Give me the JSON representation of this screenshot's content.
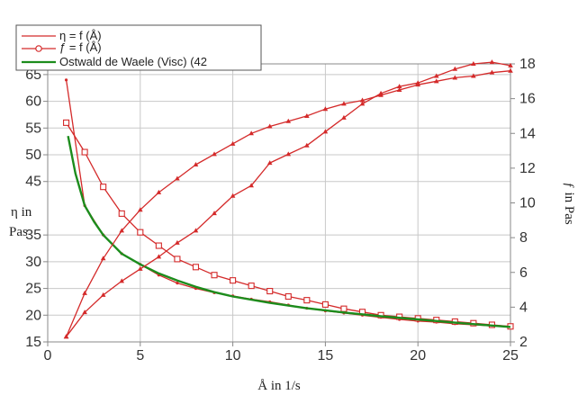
{
  "chart_data": {
    "type": "line",
    "xlabel": "Å in 1/s",
    "ylabel_left": [
      "η in",
      "Pas"
    ],
    "ylabel_right": "ƒ in Pas",
    "xlim": [
      0,
      25
    ],
    "ylim_left": [
      15,
      67
    ],
    "ylim_right": [
      2,
      18
    ],
    "xticks": [
      0,
      5,
      10,
      15,
      20,
      25
    ],
    "yticks_left": [
      15,
      20,
      25,
      30,
      35,
      45,
      50,
      55,
      60,
      65
    ],
    "yticks_right": [
      2,
      4,
      6,
      8,
      10,
      12,
      14,
      16,
      18
    ],
    "grid": true,
    "legend_position": "top-left",
    "colors": {
      "red_series": "#d42a2a",
      "fit_series": "#1c8c1c",
      "grid": "#c8c8c8",
      "axes": "#888888"
    },
    "series": [
      {
        "name": "η = f (Å)",
        "axis": "left",
        "marker": "circle",
        "x": [
          1,
          2,
          3,
          4,
          5,
          6,
          7,
          8,
          9,
          10,
          11,
          12,
          13,
          14,
          15,
          16,
          17,
          18,
          19,
          20,
          21,
          22,
          23,
          24,
          25
        ],
        "y": [
          64,
          40.5,
          35,
          31.5,
          29.5,
          27.5,
          26,
          25,
          24.2,
          23.6,
          23.0,
          22.5,
          21.9,
          21.3,
          20.8,
          20.4,
          20.0,
          19.6,
          19.2,
          18.9,
          18.7,
          18.4,
          18.2,
          18.0,
          17.8
        ]
      },
      {
        "name": "ƒ = f (Å)",
        "axis": "left",
        "marker": "square",
        "x": [
          1,
          2,
          3,
          4,
          5,
          6,
          7,
          8,
          9,
          10,
          11,
          12,
          13,
          14,
          15,
          16,
          17,
          18,
          19,
          20,
          21,
          22,
          23,
          24,
          25
        ],
        "y": [
          56,
          50.5,
          44,
          39,
          35.5,
          33,
          30.5,
          29,
          27.5,
          26.5,
          25.5,
          24.5,
          23.5,
          22.8,
          22.0,
          21.2,
          20.6,
          20.0,
          19.7,
          19.4,
          19.1,
          18.8,
          18.5,
          18.2,
          17.9
        ]
      },
      {
        "name": "Ostwald de Waele (Visc) (42",
        "axis": "left",
        "marker": "none",
        "x": [
          1.1,
          1.5,
          2,
          2.5,
          3,
          4,
          5,
          6,
          7,
          8,
          9,
          10,
          12,
          14,
          16,
          18,
          20,
          22,
          25
        ],
        "y": [
          53.5,
          46.5,
          40.5,
          37.5,
          35,
          31.5,
          29.5,
          27.8,
          26.5,
          25.3,
          24.3,
          23.5,
          22.3,
          21.3,
          20.5,
          19.8,
          19.2,
          18.6,
          17.8
        ]
      },
      {
        "name": "",
        "axis": "right",
        "marker": "triangle",
        "x": [
          1,
          2,
          3,
          4,
          5,
          6,
          7,
          8,
          9,
          10,
          11,
          12,
          13,
          14,
          15,
          16,
          17,
          18,
          19,
          20,
          21,
          22,
          23,
          24,
          25
        ],
        "y": [
          2.3,
          4.8,
          6.8,
          8.4,
          9.6,
          10.6,
          11.4,
          12.2,
          12.8,
          13.4,
          14.0,
          14.4,
          14.7,
          15.0,
          15.4,
          15.7,
          15.9,
          16.2,
          16.5,
          16.8,
          17.0,
          17.2,
          17.3,
          17.5,
          17.6
        ]
      },
      {
        "name": "",
        "axis": "right",
        "marker": "triangle",
        "x": [
          1,
          2,
          3,
          4,
          5,
          6,
          7,
          8,
          9,
          10,
          11,
          12,
          13,
          14,
          15,
          16,
          17,
          18,
          19,
          20,
          21,
          22,
          23,
          24,
          25
        ],
        "y": [
          2.3,
          3.7,
          4.7,
          5.5,
          6.2,
          6.9,
          7.7,
          8.4,
          9.4,
          10.4,
          11.0,
          12.3,
          12.8,
          13.3,
          14.1,
          14.9,
          15.7,
          16.3,
          16.7,
          16.9,
          17.3,
          17.7,
          18.0,
          18.1,
          17.9
        ]
      }
    ]
  }
}
